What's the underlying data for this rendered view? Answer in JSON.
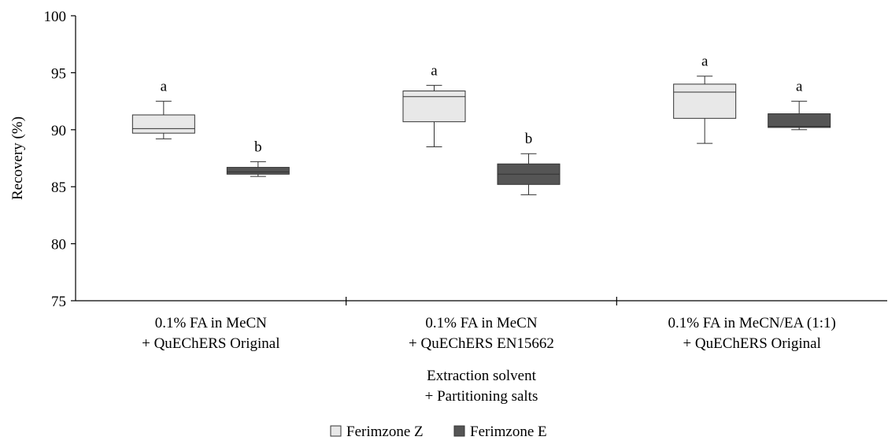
{
  "chart_data": {
    "type": "box",
    "ylabel": "Recovery (%)",
    "xlabel_lines": [
      "Extraction solvent",
      "+ Partitioning salts"
    ],
    "ylim": [
      75,
      100
    ],
    "yticks": [
      75,
      80,
      85,
      90,
      95,
      100
    ],
    "grid": false,
    "legend_position": "bottom-center",
    "categories": [
      {
        "lines": [
          "0.1% FA in MeCN",
          "+ QuEChERS Original"
        ]
      },
      {
        "lines": [
          "0.1% FA in MeCN",
          "+ QuEChERS EN15662"
        ]
      },
      {
        "lines": [
          "0.1% FA in MeCN/EA (1:1)",
          "+ QuEChERS Original"
        ]
      }
    ],
    "series": [
      {
        "name": "Ferimzone Z",
        "color": "#e8e8e8",
        "boxes": [
          {
            "min": 89.2,
            "q1": 89.7,
            "median": 90.1,
            "q3": 91.3,
            "max": 92.5,
            "letter": "a"
          },
          {
            "min": 88.5,
            "q1": 90.7,
            "median": 92.9,
            "q3": 93.4,
            "max": 93.9,
            "letter": "a"
          },
          {
            "min": 88.8,
            "q1": 91.0,
            "median": 93.3,
            "q3": 94.0,
            "max": 94.7,
            "letter": "a"
          }
        ]
      },
      {
        "name": "Ferimzone E",
        "color": "#555555",
        "boxes": [
          {
            "min": 85.9,
            "q1": 86.1,
            "median": 86.3,
            "q3": 86.7,
            "max": 87.2,
            "letter": "b"
          },
          {
            "min": 84.3,
            "q1": 85.2,
            "median": 86.1,
            "q3": 87.0,
            "max": 87.9,
            "letter": "b"
          },
          {
            "min": 90.0,
            "q1": 90.2,
            "median": 90.3,
            "q3": 91.4,
            "max": 92.5,
            "letter": "a"
          }
        ]
      }
    ]
  }
}
